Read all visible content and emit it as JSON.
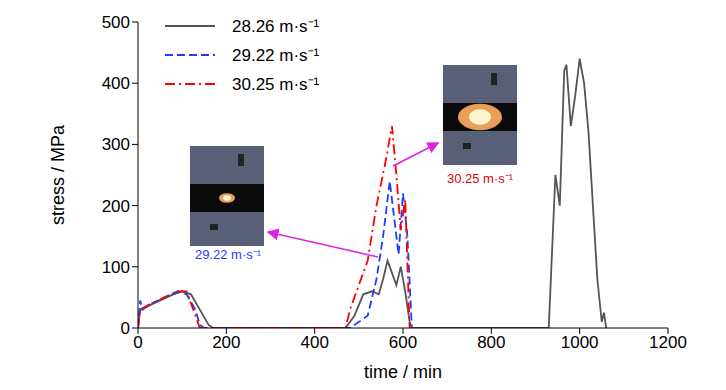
{
  "chart_data": {
    "type": "line",
    "x_label": "time / min",
    "y_label": "stress / MPa",
    "xlim": [
      0,
      1200
    ],
    "xticks": [
      0,
      200,
      400,
      600,
      800,
      1000,
      1200
    ],
    "ylim": [
      0,
      500
    ],
    "yticks": [
      0,
      100,
      200,
      300,
      400,
      500
    ],
    "grid": false,
    "legend": "upper left",
    "series": [
      {
        "name": "28.26 m·s⁻¹",
        "color": "#555555",
        "line_style": "solid",
        "x": [
          0,
          5,
          20,
          50,
          80,
          100,
          120,
          140,
          160,
          170,
          470,
          490,
          510,
          530,
          545,
          555,
          565,
          575,
          585,
          595,
          605,
          615,
          620,
          930,
          945,
          955,
          965,
          970,
          980,
          990,
          1000,
          1010,
          1020,
          1030,
          1040,
          1050,
          1055,
          1060
        ],
        "values": [
          0,
          30,
          35,
          45,
          55,
          60,
          55,
          30,
          5,
          0,
          0,
          20,
          55,
          60,
          55,
          80,
          110,
          90,
          70,
          100,
          60,
          10,
          0,
          0,
          250,
          200,
          420,
          430,
          330,
          380,
          440,
          400,
          320,
          200,
          80,
          10,
          25,
          0
        ]
      },
      {
        "name": "29.22 m·s⁻¹",
        "color": "#1e3cff",
        "line_style": "dashed",
        "x": [
          0,
          5,
          10,
          30,
          60,
          90,
          110,
          130,
          140,
          150,
          480,
          500,
          520,
          540,
          555,
          570,
          580,
          590,
          600,
          610,
          620
        ],
        "values": [
          0,
          45,
          30,
          40,
          50,
          60,
          55,
          30,
          5,
          0,
          0,
          10,
          20,
          80,
          150,
          240,
          180,
          120,
          220,
          150,
          0
        ]
      },
      {
        "name": "30.25 m·s⁻¹",
        "color": "#ff0000",
        "line_style": "dashdot",
        "x": [
          0,
          5,
          30,
          60,
          90,
          110,
          130,
          140,
          470,
          480,
          500,
          520,
          540,
          560,
          575,
          585,
          595,
          605,
          615
        ],
        "values": [
          0,
          30,
          40,
          50,
          60,
          60,
          20,
          0,
          0,
          30,
          70,
          110,
          200,
          270,
          330,
          250,
          160,
          210,
          0
        ]
      }
    ],
    "annotations": [
      {
        "text": "29.22 m·s⁻¹",
        "color": "#1e3cff"
      },
      {
        "text": "30.25 m·s⁻¹",
        "color": "#e00000"
      }
    ]
  }
}
